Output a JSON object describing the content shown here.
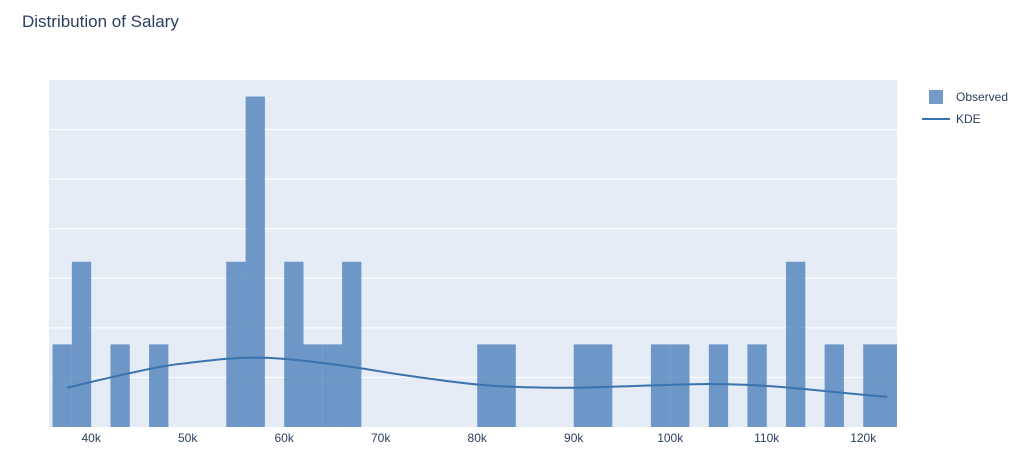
{
  "title": "Distribution of Salary",
  "legend": {
    "observed_label": "Observed",
    "kde_label": "KDE"
  },
  "colors": {
    "plot_bg": "#e5ecf6",
    "bar": "#4a7fb8",
    "kde": "#3a73ad",
    "grid": "#ffffff",
    "text": "#2a3f5f"
  },
  "chart_data": {
    "type": "bar",
    "title": "Distribution of Salary",
    "xlabel": "",
    "ylabel": "",
    "xlim": [
      35630,
      123500
    ],
    "ylim": [
      0,
      8.4
    ],
    "bin_width": 2000,
    "xticks": [
      40000,
      50000,
      60000,
      70000,
      80000,
      90000,
      100000,
      110000,
      120000
    ],
    "xtick_labels": [
      "40k",
      "50k",
      "60k",
      "70k",
      "80k",
      "90k",
      "100k",
      "110k",
      "120k"
    ],
    "grid_y": [
      0,
      1.2,
      2.4,
      3.6,
      4.8,
      6.0,
      7.2
    ],
    "legend_position": "top-right",
    "series": [
      {
        "name": "Observed",
        "kind": "histogram",
        "bin_starts": [
          36000,
          38000,
          42000,
          46000,
          54000,
          56000,
          60000,
          62000,
          64000,
          66000,
          80000,
          82000,
          90000,
          92000,
          98000,
          100000,
          104000,
          108000,
          112000,
          116000,
          120000,
          122000
        ],
        "values": [
          2,
          4,
          2,
          2,
          4,
          8,
          4,
          2,
          2,
          4,
          2,
          2,
          2,
          2,
          2,
          2,
          2,
          2,
          4,
          2,
          2,
          2
        ]
      },
      {
        "name": "KDE",
        "kind": "line",
        "x": [
          37500,
          42000,
          47000,
          50000,
          54000,
          57000,
          60000,
          64000,
          68000,
          72000,
          76000,
          80000,
          84000,
          88000,
          92000,
          96000,
          100000,
          104000,
          108000,
          112000,
          116000,
          120000,
          122500
        ],
        "y": [
          0.95,
          1.2,
          1.45,
          1.55,
          1.65,
          1.68,
          1.65,
          1.55,
          1.42,
          1.27,
          1.14,
          1.03,
          0.97,
          0.95,
          0.96,
          0.99,
          1.02,
          1.04,
          1.02,
          0.96,
          0.87,
          0.78,
          0.73
        ]
      }
    ]
  }
}
